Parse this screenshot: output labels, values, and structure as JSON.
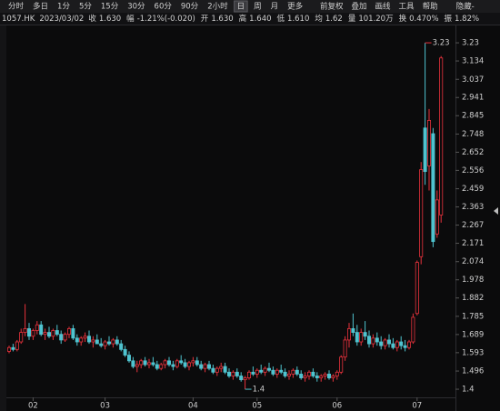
{
  "toolbar": {
    "tabs": [
      "分时",
      "多日",
      "1分",
      "5分",
      "15分",
      "30分",
      "60分",
      "90分",
      "2小时",
      "日",
      "周",
      "月",
      "更多"
    ],
    "active_tab": 9,
    "tools": [
      "前复权",
      "叠加",
      "画线",
      "工具",
      "帮助",
      "隐藏-"
    ]
  },
  "quote": {
    "symbol": "1057.HK",
    "date": "2023/03/02",
    "items": [
      {
        "label": "收",
        "value": "1.630",
        "color": "#3fc07a"
      },
      {
        "label": "幅",
        "value": "-1.21%(-0.020)",
        "color": "#3fc07a"
      },
      {
        "label": "开",
        "value": "1.630",
        "color": "#3fc07a"
      },
      {
        "label": "高",
        "value": "1.640",
        "color": "#3fc07a"
      },
      {
        "label": "低",
        "value": "1.610",
        "color": "#3fc07a"
      },
      {
        "label": "均",
        "value": "1.62",
        "color": "#3fc07a"
      },
      {
        "label": "量",
        "value": "101.20万",
        "color": "#d8d8d8"
      },
      {
        "label": "换",
        "value": "0.470%",
        "color": "#d8d8d8"
      },
      {
        "label": "振",
        "value": "1.82%",
        "color": "#d8d8d8"
      }
    ]
  },
  "chart_data": {
    "type": "candlestick",
    "up_color": "#e8323c",
    "down_color": "#4fc3cf",
    "categories": [
      null,
      null,
      null,
      null,
      null,
      null,
      "02",
      null,
      null,
      null,
      null,
      null,
      null,
      null,
      null,
      null,
      null,
      null,
      null,
      null,
      null,
      null,
      null,
      null,
      "03",
      null,
      null,
      null,
      null,
      null,
      null,
      null,
      null,
      null,
      null,
      null,
      null,
      null,
      null,
      null,
      null,
      null,
      null,
      null,
      null,
      null,
      "04",
      null,
      null,
      null,
      null,
      null,
      null,
      null,
      null,
      null,
      null,
      null,
      null,
      null,
      null,
      null,
      "05",
      null,
      null,
      null,
      null,
      null,
      null,
      null,
      null,
      null,
      null,
      null,
      null,
      null,
      null,
      null,
      null,
      null,
      null,
      null,
      "06",
      null,
      null,
      null,
      null,
      null,
      null,
      null,
      null,
      null,
      null,
      null,
      null,
      null,
      null,
      null,
      null,
      null,
      null,
      null,
      "07",
      null,
      null,
      null,
      null,
      null,
      null
    ],
    "open": [
      1.6,
      1.62,
      1.61,
      1.65,
      1.7,
      1.72,
      1.68,
      1.71,
      1.74,
      1.69,
      1.7,
      1.68,
      1.71,
      1.69,
      1.66,
      1.69,
      1.72,
      1.67,
      1.65,
      1.67,
      1.68,
      1.65,
      1.66,
      1.64,
      1.63,
      1.65,
      1.64,
      1.66,
      1.64,
      1.61,
      1.58,
      1.55,
      1.52,
      1.53,
      1.55,
      1.53,
      1.54,
      1.53,
      1.51,
      1.53,
      1.55,
      1.53,
      1.52,
      1.55,
      1.54,
      1.52,
      1.54,
      1.55,
      1.53,
      1.51,
      1.53,
      1.51,
      1.49,
      1.51,
      1.52,
      1.49,
      1.47,
      1.49,
      1.47,
      1.45,
      1.46,
      1.49,
      1.48,
      1.5,
      1.49,
      1.51,
      1.5,
      1.48,
      1.5,
      1.49,
      1.47,
      1.48,
      1.5,
      1.48,
      1.46,
      1.47,
      1.49,
      1.47,
      1.46,
      1.47,
      1.48,
      1.46,
      1.47,
      1.49,
      1.57,
      1.66,
      1.72,
      1.7,
      1.65,
      1.7,
      1.68,
      1.64,
      1.67,
      1.65,
      1.63,
      1.66,
      1.64,
      1.62,
      1.65,
      1.63,
      1.62,
      1.65,
      1.8,
      2.1,
      2.78,
      2.58,
      2.75,
      2.22,
      2.32
    ],
    "high": [
      1.63,
      1.64,
      1.66,
      1.72,
      1.85,
      1.75,
      1.72,
      1.76,
      1.76,
      1.72,
      1.73,
      1.72,
      1.74,
      1.71,
      1.7,
      1.73,
      1.74,
      1.69,
      1.68,
      1.7,
      1.71,
      1.68,
      1.69,
      1.67,
      1.66,
      1.68,
      1.67,
      1.68,
      1.66,
      1.63,
      1.6,
      1.57,
      1.55,
      1.56,
      1.57,
      1.56,
      1.57,
      1.55,
      1.54,
      1.56,
      1.57,
      1.55,
      1.56,
      1.58,
      1.56,
      1.55,
      1.57,
      1.57,
      1.55,
      1.54,
      1.55,
      1.53,
      1.52,
      1.54,
      1.54,
      1.51,
      1.5,
      1.51,
      1.49,
      1.47,
      1.5,
      1.52,
      1.51,
      1.53,
      1.52,
      1.54,
      1.52,
      1.51,
      1.53,
      1.51,
      1.5,
      1.51,
      1.52,
      1.5,
      1.49,
      1.5,
      1.51,
      1.49,
      1.48,
      1.49,
      1.5,
      1.48,
      1.5,
      1.58,
      1.68,
      1.75,
      1.8,
      1.74,
      1.72,
      1.76,
      1.71,
      1.69,
      1.7,
      1.68,
      1.67,
      1.69,
      1.67,
      1.66,
      1.68,
      1.66,
      1.66,
      1.8,
      2.08,
      2.6,
      3.23,
      2.88,
      2.78,
      2.45,
      3.16
    ],
    "low": [
      1.59,
      1.6,
      1.6,
      1.64,
      1.68,
      1.66,
      1.66,
      1.69,
      1.68,
      1.66,
      1.67,
      1.66,
      1.68,
      1.64,
      1.65,
      1.67,
      1.66,
      1.63,
      1.63,
      1.65,
      1.64,
      1.62,
      1.64,
      1.62,
      1.61,
      1.63,
      1.62,
      1.63,
      1.6,
      1.57,
      1.54,
      1.51,
      1.49,
      1.51,
      1.52,
      1.51,
      1.52,
      1.5,
      1.5,
      1.51,
      1.52,
      1.5,
      1.51,
      1.53,
      1.51,
      1.5,
      1.52,
      1.52,
      1.5,
      1.49,
      1.5,
      1.48,
      1.47,
      1.49,
      1.48,
      1.46,
      1.45,
      1.46,
      1.44,
      1.4,
      1.45,
      1.47,
      1.46,
      1.48,
      1.47,
      1.49,
      1.47,
      1.46,
      1.48,
      1.46,
      1.45,
      1.46,
      1.47,
      1.45,
      1.44,
      1.45,
      1.46,
      1.44,
      1.44,
      1.45,
      1.45,
      1.44,
      1.45,
      1.48,
      1.55,
      1.62,
      1.68,
      1.63,
      1.63,
      1.66,
      1.62,
      1.62,
      1.63,
      1.61,
      1.61,
      1.62,
      1.61,
      1.6,
      1.61,
      1.6,
      1.61,
      1.64,
      1.79,
      2.06,
      2.48,
      2.45,
      2.15,
      2.2,
      2.28
    ],
    "close": [
      1.62,
      1.61,
      1.65,
      1.7,
      1.72,
      1.68,
      1.71,
      1.74,
      1.69,
      1.7,
      1.68,
      1.71,
      1.69,
      1.66,
      1.69,
      1.72,
      1.67,
      1.65,
      1.67,
      1.68,
      1.65,
      1.66,
      1.64,
      1.63,
      1.65,
      1.64,
      1.66,
      1.64,
      1.61,
      1.58,
      1.55,
      1.52,
      1.53,
      1.55,
      1.53,
      1.54,
      1.53,
      1.51,
      1.53,
      1.55,
      1.53,
      1.52,
      1.55,
      1.54,
      1.52,
      1.54,
      1.55,
      1.53,
      1.51,
      1.53,
      1.51,
      1.49,
      1.51,
      1.52,
      1.49,
      1.47,
      1.49,
      1.47,
      1.45,
      1.46,
      1.49,
      1.48,
      1.5,
      1.49,
      1.51,
      1.5,
      1.48,
      1.5,
      1.49,
      1.47,
      1.48,
      1.5,
      1.48,
      1.46,
      1.47,
      1.49,
      1.47,
      1.46,
      1.47,
      1.48,
      1.46,
      1.47,
      1.49,
      1.57,
      1.66,
      1.72,
      1.7,
      1.65,
      1.7,
      1.68,
      1.64,
      1.67,
      1.65,
      1.63,
      1.66,
      1.64,
      1.62,
      1.65,
      1.63,
      1.62,
      1.65,
      1.78,
      2.07,
      2.56,
      2.55,
      2.82,
      2.18,
      2.4,
      3.15
    ],
    "ylim": [
      1.357,
      3.312
    ],
    "yticks": [
      3.23,
      3.134,
      3.037,
      2.941,
      2.845,
      2.748,
      2.652,
      2.556,
      2.459,
      2.363,
      2.267,
      2.171,
      2.074,
      1.978,
      1.882,
      1.785,
      1.689,
      1.593,
      1.496,
      1.4
    ],
    "annotations": [
      {
        "label": "3.23",
        "value": 3.23,
        "of": "high"
      },
      {
        "label": "1.4",
        "value": 1.4,
        "of": "low"
      }
    ]
  }
}
